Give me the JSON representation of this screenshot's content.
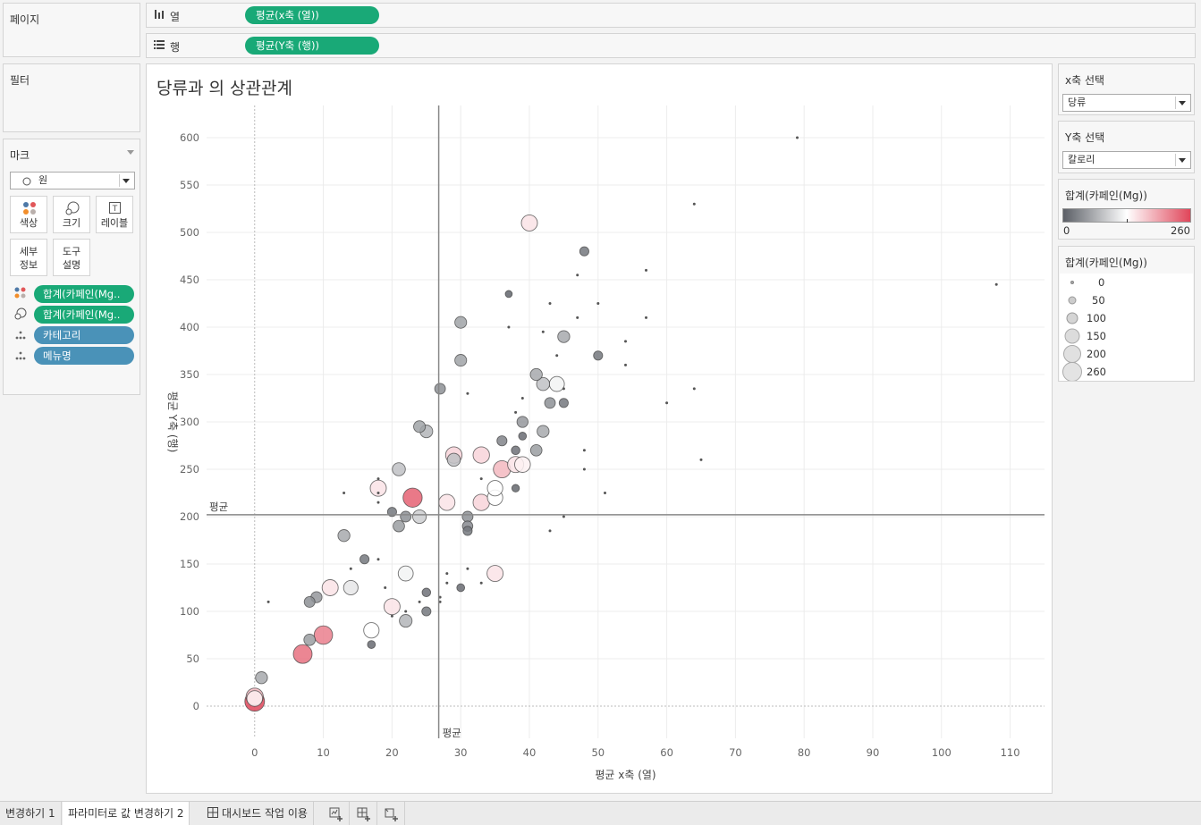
{
  "pages_panel": {
    "title": "페이지"
  },
  "columns_shelf": {
    "label": "열",
    "pill": "평균(x축 (열))"
  },
  "rows_shelf": {
    "label": "행",
    "pill": "평균(Y축 (행))"
  },
  "filters_panel": {
    "title": "필터"
  },
  "marks_panel": {
    "title": "마크",
    "mark_type": "원",
    "buttons": {
      "color": "색상",
      "size": "크기",
      "label": "레이블",
      "detail": "세부\n정보",
      "tooltip": "도구\n설명"
    },
    "fields": [
      {
        "label": "합계(카페인(Mg..",
        "kind": "color"
      },
      {
        "label": "합계(카페인(Mg..",
        "kind": "size"
      },
      {
        "label": "카테고리",
        "kind": "detail"
      },
      {
        "label": "메뉴명",
        "kind": "detail"
      }
    ]
  },
  "x_param": {
    "title": "x축 선택",
    "value": "당류"
  },
  "y_param": {
    "title": "Y축 선택",
    "value": "칼로리"
  },
  "color_legend": {
    "title": "합계(카페인(Mg))",
    "min_label": "0",
    "max_label": "260",
    "colors": [
      "#5b5f66",
      "#ffffff",
      "#e0465a"
    ]
  },
  "size_legend": {
    "title": "합계(카페인(Mg))",
    "items": [
      "0",
      "50",
      "100",
      "150",
      "200",
      "260"
    ]
  },
  "tabs": [
    {
      "label": "변경하기 1",
      "active": false
    },
    {
      "label": "파라미터로 값 변경하기 2",
      "active": true
    },
    {
      "label": "대시보드 작업 이용",
      "active": false
    }
  ],
  "chart_data": {
    "type": "scatter",
    "title": "당류과 의 상관관계",
    "xlabel": "평균 x축 (열)",
    "ylabel": "평균 Y축 (행)",
    "xlim": [
      -7,
      115
    ],
    "ylim": [
      -34,
      634
    ],
    "xticks": [
      0,
      10,
      20,
      30,
      40,
      50,
      60,
      70,
      80,
      90,
      100,
      110
    ],
    "yticks": [
      0,
      50,
      100,
      150,
      200,
      250,
      300,
      350,
      400,
      450,
      500,
      550,
      600
    ],
    "reference_lines": {
      "label": "평균",
      "x_mean": 26.8,
      "y_mean": 202
    },
    "color_range": [
      0,
      260
    ],
    "size_field": "합계(카페인(Mg))",
    "points": [
      [
        0,
        5,
        260
      ],
      [
        0,
        10,
        180
      ],
      [
        0,
        8,
        140
      ],
      [
        1,
        30,
        60
      ],
      [
        7,
        55,
        230
      ],
      [
        8,
        70,
        50
      ],
      [
        8,
        110,
        40
      ],
      [
        9,
        115,
        45
      ],
      [
        10,
        75,
        220
      ],
      [
        11,
        125,
        150
      ],
      [
        13,
        180,
        60
      ],
      [
        14,
        125,
        110
      ],
      [
        16,
        155,
        20
      ],
      [
        17,
        65,
        10
      ],
      [
        17,
        80,
        130
      ],
      [
        18,
        230,
        150
      ],
      [
        20,
        105,
        150
      ],
      [
        20,
        205,
        20
      ],
      [
        21,
        190,
        50
      ],
      [
        21,
        250,
        80
      ],
      [
        22,
        200,
        40
      ],
      [
        22,
        140,
        120
      ],
      [
        22,
        90,
        70
      ],
      [
        23,
        220,
        240
      ],
      [
        24,
        200,
        90
      ],
      [
        24,
        295,
        55
      ],
      [
        25,
        100,
        20
      ],
      [
        25,
        120,
        15
      ],
      [
        25,
        290,
        70
      ],
      [
        27,
        335,
        40
      ],
      [
        28,
        215,
        150
      ],
      [
        29,
        260,
        80
      ],
      [
        29,
        265,
        160
      ],
      [
        30,
        125,
        10
      ],
      [
        30,
        365,
        55
      ],
      [
        30,
        405,
        55
      ],
      [
        31,
        185,
        20
      ],
      [
        31,
        190,
        35
      ],
      [
        31,
        200,
        40
      ],
      [
        33,
        215,
        160
      ],
      [
        33,
        265,
        160
      ],
      [
        35,
        220,
        130
      ],
      [
        35,
        230,
        130
      ],
      [
        35,
        140,
        150
      ],
      [
        36,
        250,
        180
      ],
      [
        36,
        280,
        30
      ],
      [
        37,
        435,
        5
      ],
      [
        38,
        255,
        150
      ],
      [
        38,
        230,
        8
      ],
      [
        38,
        270,
        15
      ],
      [
        39,
        255,
        140
      ],
      [
        39,
        285,
        10
      ],
      [
        39,
        300,
        45
      ],
      [
        40,
        510,
        150
      ],
      [
        41,
        270,
        50
      ],
      [
        41,
        350,
        60
      ],
      [
        42,
        340,
        80
      ],
      [
        42,
        290,
        60
      ],
      [
        43,
        320,
        40
      ],
      [
        44,
        340,
        120
      ],
      [
        45,
        390,
        60
      ],
      [
        45,
        320,
        20
      ],
      [
        48,
        480,
        20
      ],
      [
        50,
        370,
        20
      ],
      [
        2,
        110,
        0
      ],
      [
        13,
        225,
        0
      ],
      [
        14,
        145,
        0
      ],
      [
        18,
        240,
        0
      ],
      [
        18,
        225,
        0
      ],
      [
        18,
        155,
        0
      ],
      [
        18,
        215,
        0
      ],
      [
        19,
        125,
        0
      ],
      [
        20,
        95,
        0
      ],
      [
        22,
        100,
        0
      ],
      [
        24,
        110,
        0
      ],
      [
        27,
        110,
        0
      ],
      [
        27,
        115,
        0
      ],
      [
        28,
        130,
        0
      ],
      [
        28,
        140,
        0
      ],
      [
        31,
        330,
        0
      ],
      [
        31,
        145,
        0
      ],
      [
        33,
        130,
        0
      ],
      [
        33,
        240,
        0
      ],
      [
        37,
        400,
        0
      ],
      [
        38,
        310,
        0
      ],
      [
        39,
        325,
        0
      ],
      [
        42,
        395,
        0
      ],
      [
        43,
        185,
        0
      ],
      [
        43,
        425,
        0
      ],
      [
        44,
        370,
        0
      ],
      [
        45,
        200,
        0
      ],
      [
        45,
        335,
        0
      ],
      [
        47,
        455,
        0
      ],
      [
        47,
        410,
        0
      ],
      [
        48,
        250,
        0
      ],
      [
        48,
        270,
        0
      ],
      [
        50,
        425,
        0
      ],
      [
        51,
        225,
        0
      ],
      [
        54,
        360,
        0
      ],
      [
        54,
        385,
        0
      ],
      [
        57,
        410,
        0
      ],
      [
        57,
        460,
        0
      ],
      [
        60,
        320,
        0
      ],
      [
        64,
        335,
        0
      ],
      [
        64,
        530,
        0
      ],
      [
        65,
        260,
        0
      ],
      [
        79,
        600,
        0
      ],
      [
        108,
        445,
        0
      ]
    ]
  }
}
